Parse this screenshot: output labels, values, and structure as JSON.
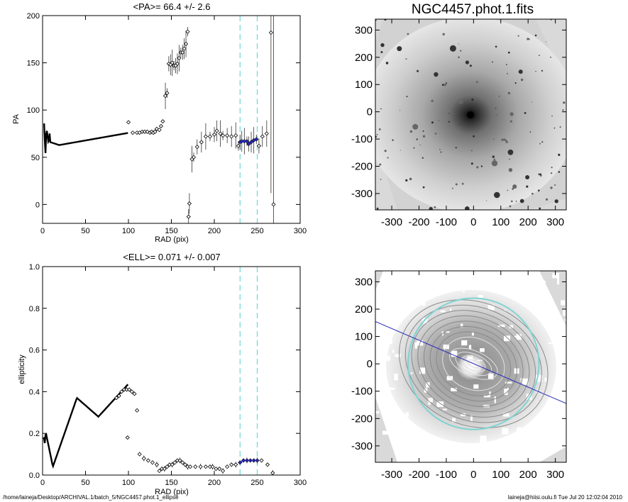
{
  "chart_data": [
    {
      "type": "scatter",
      "title": "<PA>=  66.4 +/-   2.6",
      "xlabel": "RAD (pix)",
      "ylabel": "PA",
      "xlim": [
        0,
        300
      ],
      "ylim": [
        -20,
        200
      ],
      "xticks": [
        0,
        50,
        100,
        150,
        200,
        250,
        300
      ],
      "yticks": [
        0,
        50,
        100,
        150,
        200
      ],
      "vlines": [
        230,
        250
      ],
      "points": [
        [
          100,
          87
        ],
        [
          105,
          76
        ],
        [
          110,
          76
        ],
        [
          113,
          76
        ],
        [
          116,
          77
        ],
        [
          119,
          77
        ],
        [
          122,
          77
        ],
        [
          125,
          76
        ],
        [
          127,
          77
        ],
        [
          129,
          76
        ],
        [
          131,
          77
        ],
        [
          133,
          80
        ],
        [
          136,
          79
        ],
        [
          138,
          83
        ],
        [
          140,
          88
        ],
        [
          143,
          115
        ],
        [
          145,
          118
        ],
        [
          147,
          149
        ],
        [
          149,
          148
        ],
        [
          151,
          150
        ],
        [
          153,
          147
        ],
        [
          155,
          147
        ],
        [
          157,
          149
        ],
        [
          159,
          155
        ],
        [
          161,
          161
        ],
        [
          163,
          161
        ],
        [
          165,
          165
        ],
        [
          167,
          170
        ],
        [
          169,
          183
        ],
        [
          170,
          -13
        ],
        [
          171,
          1
        ],
        [
          174,
          48
        ],
        [
          176,
          50
        ],
        [
          180,
          61
        ],
        [
          185,
          66
        ],
        [
          190,
          72
        ],
        [
          195,
          72
        ],
        [
          200,
          74
        ],
        [
          203,
          78
        ],
        [
          207,
          75
        ],
        [
          210,
          73
        ],
        [
          215,
          73
        ],
        [
          220,
          72
        ],
        [
          225,
          73
        ],
        [
          228,
          62
        ],
        [
          230,
          66
        ],
        [
          232,
          67
        ],
        [
          235,
          67
        ],
        [
          238,
          67
        ],
        [
          240,
          64
        ],
        [
          243,
          66
        ],
        [
          246,
          68
        ],
        [
          249,
          69
        ],
        [
          252,
          62
        ],
        [
          256,
          72
        ],
        [
          261,
          75
        ],
        [
          266,
          182
        ],
        [
          269,
          0
        ]
      ],
      "highlight_points": [
        [
          230,
          66
        ],
        [
          232,
          67
        ],
        [
          235,
          67
        ],
        [
          238,
          67
        ],
        [
          240,
          64
        ],
        [
          243,
          66
        ],
        [
          246,
          68
        ],
        [
          249,
          69
        ]
      ]
    },
    {
      "type": "scatter",
      "title": "<ELL>= 0.071 +/-  0.007",
      "xlabel": "RAD (pix)",
      "ylabel": "ellipticity",
      "xlim": [
        0,
        300
      ],
      "ylim": [
        0,
        1
      ],
      "xticks": [
        0,
        50,
        100,
        150,
        200,
        250,
        300
      ],
      "yticks": [
        0.0,
        0.2,
        0.4,
        0.6,
        0.8,
        1.0
      ],
      "vlines": [
        230,
        250
      ],
      "points": [
        [
          86,
          0.37
        ],
        [
          89,
          0.38
        ],
        [
          92,
          0.4
        ],
        [
          95,
          0.41
        ],
        [
          98,
          0.41
        ],
        [
          101,
          0.41
        ],
        [
          104,
          0.4
        ],
        [
          107,
          0.39
        ],
        [
          99,
          0.18
        ],
        [
          110,
          0.31
        ],
        [
          113,
          0.1
        ],
        [
          118,
          0.08
        ],
        [
          123,
          0.07
        ],
        [
          128,
          0.06
        ],
        [
          133,
          0.05
        ],
        [
          136,
          0.02
        ],
        [
          139,
          0.03
        ],
        [
          142,
          0.03
        ],
        [
          145,
          0.04
        ],
        [
          148,
          0.05
        ],
        [
          151,
          0.05
        ],
        [
          154,
          0.06
        ],
        [
          157,
          0.07
        ],
        [
          160,
          0.07
        ],
        [
          163,
          0.06
        ],
        [
          166,
          0.05
        ],
        [
          169,
          0.04
        ],
        [
          172,
          0.04
        ],
        [
          178,
          0.04
        ],
        [
          184,
          0.04
        ],
        [
          190,
          0.04
        ],
        [
          195,
          0.04
        ],
        [
          198,
          0.04
        ],
        [
          202,
          0.03
        ],
        [
          206,
          0.03
        ],
        [
          210,
          0.02
        ],
        [
          215,
          0.04
        ],
        [
          220,
          0.05
        ],
        [
          225,
          0.05
        ],
        [
          230,
          0.06
        ],
        [
          234,
          0.07
        ],
        [
          238,
          0.07
        ],
        [
          242,
          0.07
        ],
        [
          246,
          0.07
        ],
        [
          250,
          0.07
        ],
        [
          255,
          0.07
        ],
        [
          262,
          0.05
        ],
        [
          268,
          0.01
        ]
      ],
      "highlight_points": [
        [
          230,
          0.06
        ],
        [
          234,
          0.07
        ],
        [
          238,
          0.07
        ],
        [
          242,
          0.07
        ],
        [
          246,
          0.07
        ],
        [
          250,
          0.07
        ]
      ]
    },
    {
      "type": "image",
      "title": "NGC4457.phot.1.fits",
      "xlim": [
        -360,
        340
      ],
      "ylim": [
        -360,
        340
      ],
      "xticks": [
        -300,
        -200,
        -100,
        0,
        100,
        200,
        300
      ],
      "yticks": [
        -300,
        -200,
        -100,
        0,
        100,
        200,
        300
      ]
    },
    {
      "type": "image",
      "title": "",
      "xlim": [
        -360,
        340
      ],
      "ylim": [
        -360,
        340
      ],
      "xticks": [
        -300,
        -200,
        -100,
        0,
        100,
        200,
        300
      ],
      "yticks": [
        -300,
        -200,
        -100,
        0,
        100,
        200,
        300
      ],
      "circle_radius": 240,
      "pa_line": [
        [
          -360,
          155
        ],
        [
          340,
          -145
        ]
      ]
    }
  ],
  "footer": {
    "left": "/home/laineja/Desktop/ARCHIVAL.1/batch_5/NGC4457.phot.1_ellipse",
    "right": "laineja@hiisi.oulu.fi  Tue Jul 20 12:02:04 2010"
  }
}
